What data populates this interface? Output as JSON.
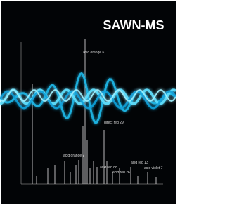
{
  "title": "SAWN-MS",
  "labels": [
    "acid orange 6",
    "direct red 29",
    "acid orange 7",
    "acid red 88",
    "acid red 26",
    "acid red 13",
    "acid violet 7"
  ]
}
